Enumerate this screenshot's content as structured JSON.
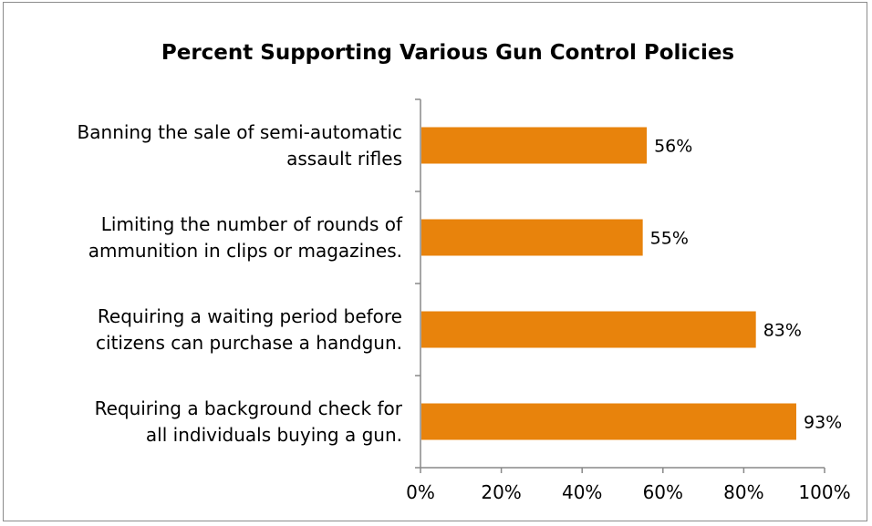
{
  "chart_data": {
    "type": "bar",
    "orientation": "horizontal",
    "title": "Percent Supporting Various Gun Control Policies",
    "categories": [
      [
        "Banning the sale of semi-automatic",
        "assault rifles"
      ],
      [
        "Limiting the number of rounds of",
        "ammunition in clips or magazines."
      ],
      [
        "Requiring a waiting period before",
        "citizens can purchase a handgun."
      ],
      [
        "Requiring a background check for",
        "all individuals buying a gun."
      ]
    ],
    "values": [
      56,
      55,
      83,
      93
    ],
    "data_labels": [
      "56%",
      "55%",
      "83%",
      "93%"
    ],
    "xlim": [
      0,
      100
    ],
    "x_ticks": [
      0,
      20,
      40,
      60,
      80,
      100
    ],
    "x_tick_labels": [
      "0%",
      "20%",
      "40%",
      "60%",
      "80%",
      "100%"
    ],
    "xlabel": "",
    "ylabel": "",
    "bar_color": "#E8830C",
    "axis_color": "#888888",
    "grid": false,
    "legend": "none"
  }
}
